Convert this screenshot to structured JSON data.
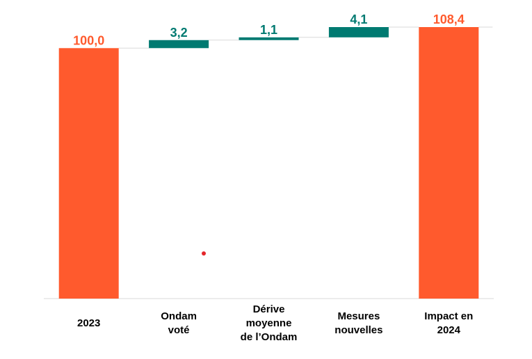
{
  "chart_data": {
    "type": "waterfall",
    "categories": [
      "2023",
      "Ondam\nvoté",
      "Dérive\nmoyenne\nde l’Ondam",
      "Mesures\nnouvelles",
      "Impact en\n2024"
    ],
    "values": [
      100.0,
      3.2,
      1.1,
      4.1,
      108.4
    ],
    "value_labels": [
      "100,0",
      "3,2",
      "1,1",
      "4,1",
      "108,4"
    ],
    "bar_kinds": [
      "total",
      "increase",
      "increase",
      "increase",
      "total"
    ],
    "title": "",
    "xlabel": "",
    "ylabel": "",
    "ylim": [
      0,
      108.4
    ],
    "grid": false,
    "legend": "none",
    "colors": {
      "total": "#FF5A2D",
      "increase": "#007A71",
      "connector": "#D9D9D9",
      "axis": "#D9D9D9"
    }
  }
}
